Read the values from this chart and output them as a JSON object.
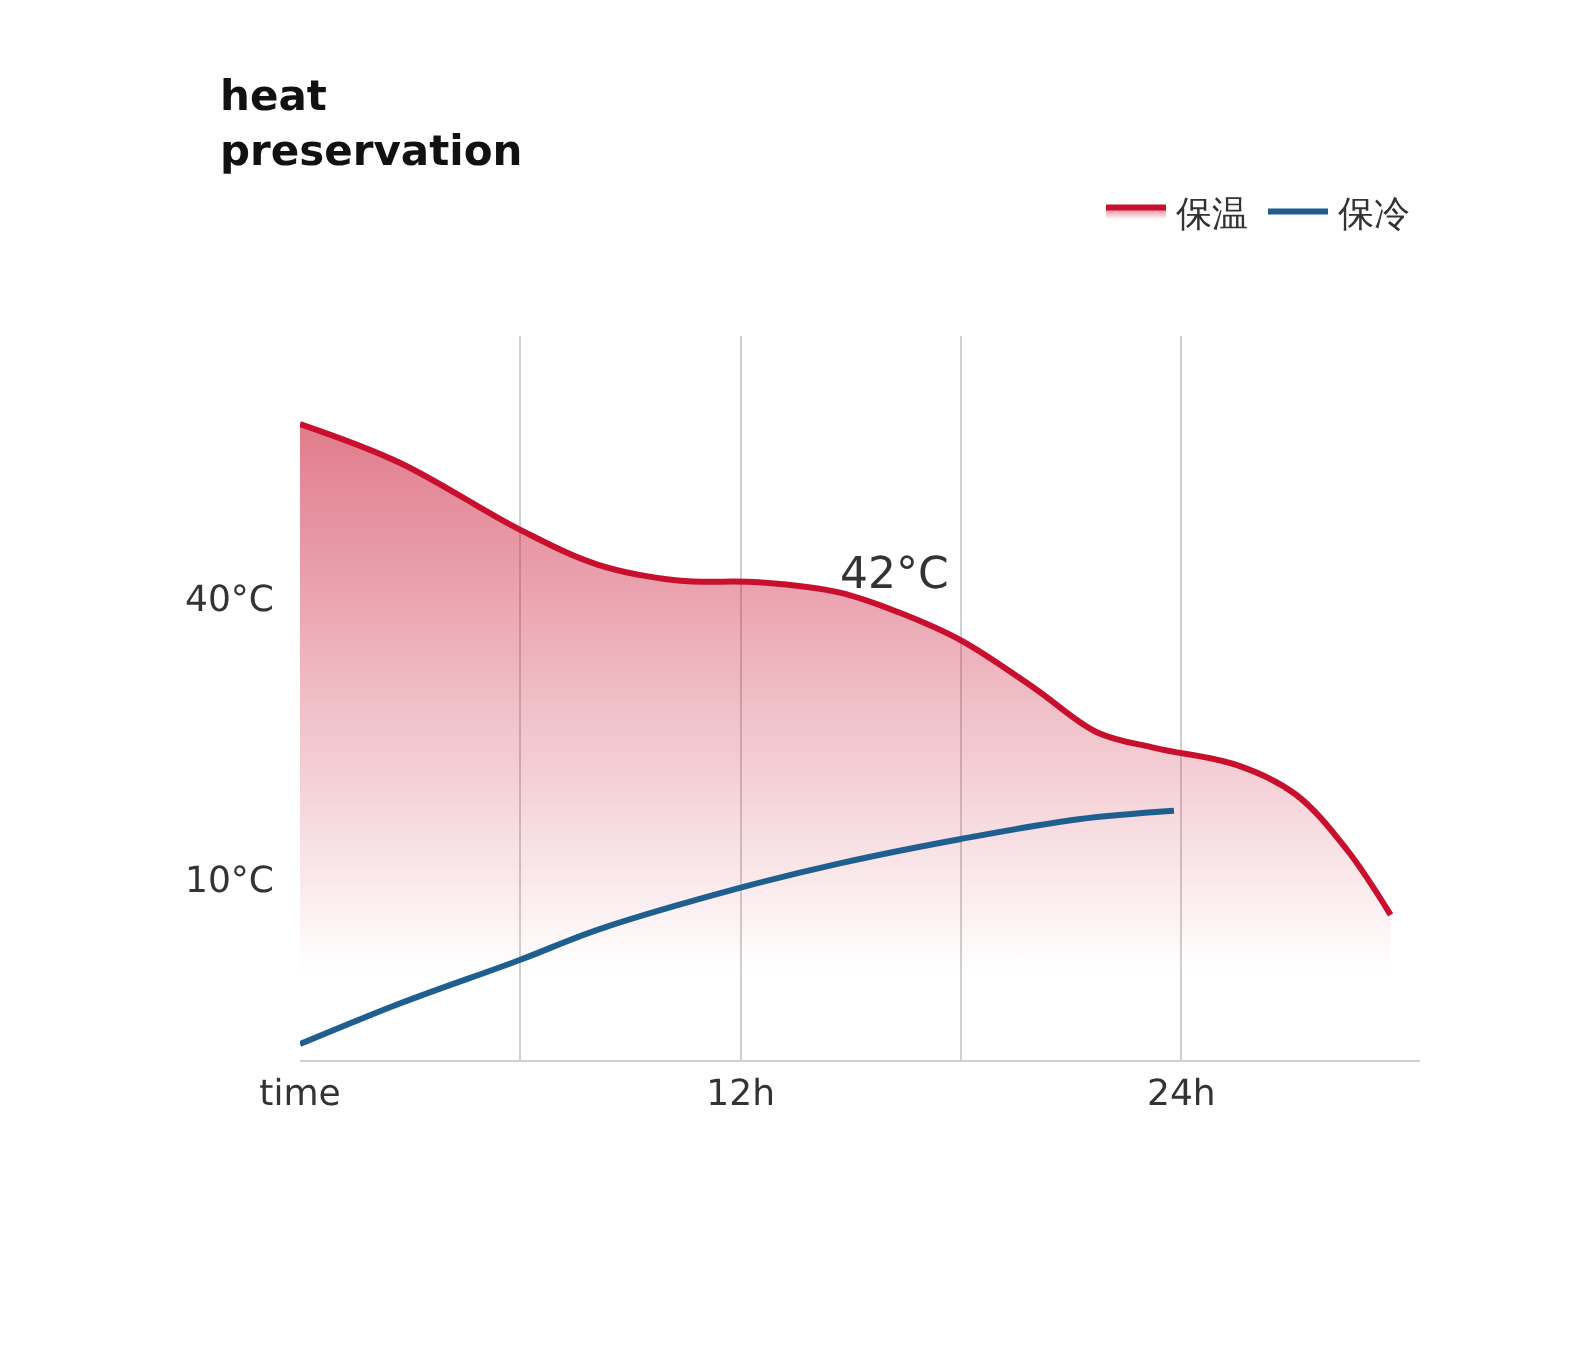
{
  "chart_data": {
    "type": "line",
    "title": "heat preservation",
    "x": [
      0,
      2.7,
      6,
      8.1,
      10.3,
      12.5,
      14.7,
      16.3,
      18,
      20,
      21.7,
      23.3,
      25.5,
      27.1,
      28.5,
      29.7
    ],
    "series": [
      {
        "name": "保温",
        "type": "area",
        "color": "#c8102e",
        "values": [
          58.6,
          54.5,
          47.3,
          43.6,
          41.9,
          41.7,
          40.6,
          38.5,
          35.5,
          30.4,
          25.7,
          24.0,
          22.2,
          19.1,
          13.2,
          6.2
        ]
      },
      {
        "name": "保冷",
        "color": "#1f5f8f",
        "x": [
          0,
          2.7,
          6,
          8.1,
          12,
          14.7,
          18,
          21.2,
          23.8
        ],
        "values": [
          -7.6,
          -3.3,
          1.4,
          4.6,
          9.1,
          11.7,
          14.3,
          16.4,
          17.3
        ]
      }
    ],
    "xlim": [
      0,
      30.5
    ],
    "ylim": [
      -9.3,
      68
    ],
    "xticks": [
      {
        "value": 0,
        "label": "time"
      },
      {
        "value": 6,
        "label": null
      },
      {
        "value": 12,
        "label": "12h"
      },
      {
        "value": 18,
        "label": null
      },
      {
        "value": 24,
        "label": "24h"
      }
    ],
    "yticks": [
      {
        "value": 10,
        "label": "10°C"
      },
      {
        "value": 40,
        "label": "40°C"
      }
    ],
    "grid": "x",
    "legend": "top right",
    "annotations": [
      "42°C"
    ]
  }
}
